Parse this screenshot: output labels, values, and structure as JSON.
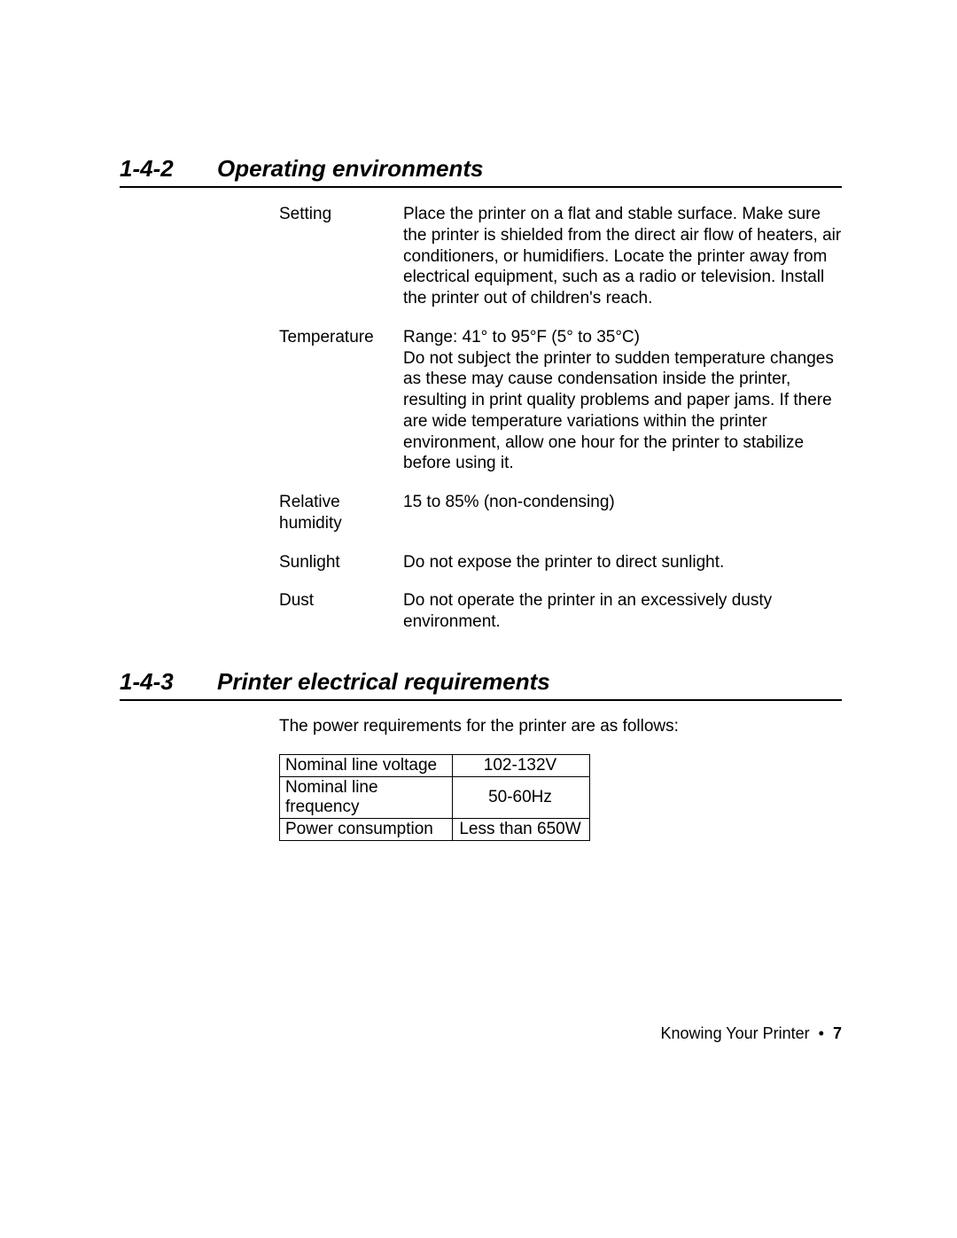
{
  "sections": {
    "s1": {
      "num": "1-4-2",
      "title": "Operating environments"
    },
    "s2": {
      "num": "1-4-3",
      "title": "Printer electrical requirements"
    }
  },
  "env": {
    "setting_label": "Setting",
    "setting_text": "Place the printer on a flat and stable surface.  Make sure the printer is shielded from the direct air flow of heaters, air conditioners, or humidifiers.  Locate the printer away from electrical equipment, such as a radio or television.  Install the printer out of children's reach.",
    "temp_label": "Temperature",
    "temp_text": "Range:  41° to 95°F (5° to 35°C)\nDo not subject the printer to sudden temperature changes as these may cause condensation inside the printer, resulting in print quality problems and paper jams.  If there are wide temperature variations within the printer environment, allow one hour for the printer to stabilize before using it.",
    "humidity_label": "Relative humidity",
    "humidity_text": "15 to 85% (non-condensing)",
    "sunlight_label": "Sunlight",
    "sunlight_text": "Do not expose the printer to direct sunlight.",
    "dust_label": "Dust",
    "dust_text": "Do not operate the printer in an excessively dusty environment."
  },
  "elec": {
    "intro": "The power requirements for the printer are as follows:",
    "rows": [
      {
        "label": "Nominal line voltage",
        "value": "102-132V"
      },
      {
        "label": "Nominal line frequency",
        "value": "50-60Hz"
      },
      {
        "label": "Power consumption",
        "value": "Less than 650W"
      }
    ]
  },
  "footer": {
    "chapter": "Knowing Your Printer",
    "sep": "•",
    "page": "7"
  }
}
